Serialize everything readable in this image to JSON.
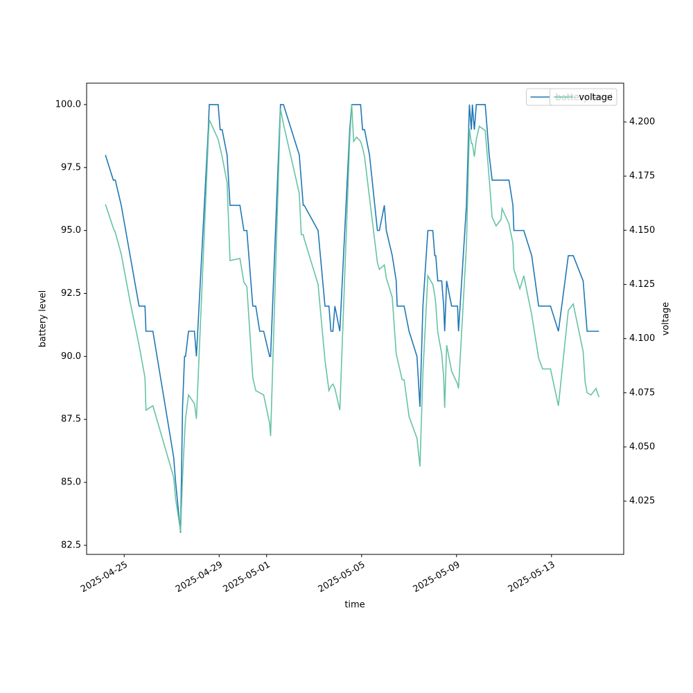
{
  "chart_data": {
    "type": "line",
    "xlabel": "time",
    "ylabel": "battery level",
    "y2label": "voltage",
    "xlim": [
      "2025-04-23T10:00",
      "2025-05-16T01:00"
    ],
    "xticks": [
      "2025-04-25",
      "2025-04-29",
      "2025-05-01",
      "2025-05-05",
      "2025-05-09",
      "2025-05-13"
    ],
    "ylim": [
      82.14,
      100.85
    ],
    "yticks": [
      82.5,
      {
        "value": 85,
        "label": "85.0"
      },
      87.5,
      {
        "value": 90,
        "label": "90.0"
      },
      92.5,
      {
        "value": 95,
        "label": "95.0"
      },
      97.5,
      {
        "value": 100,
        "label": "100.0"
      }
    ],
    "y2lim": [
      4.0004,
      4.2179
    ],
    "y2ticks": [
      4.025,
      {
        "value": 4.05,
        "label": "4.050"
      },
      4.075,
      {
        "value": 4.1,
        "label": "4.100"
      },
      4.125,
      {
        "value": 4.15,
        "label": "4.150"
      },
      4.175,
      {
        "value": 4.2,
        "label": "4.200"
      }
    ],
    "legend": "upper right",
    "x": [
      "2025-04-24T05:00",
      "2025-04-24T13:00",
      "2025-04-24T15:00",
      "2025-04-24T21:00",
      "2025-04-25T06:00",
      "2025-04-25T15:00",
      "2025-04-25T21:00",
      "2025-04-25T22:00",
      "2025-04-26T05:00",
      "2025-04-27T02:00",
      "2025-04-27T04:00",
      "2025-04-27T09:00",
      "2025-04-27T11:00",
      "2025-04-27T13:00",
      "2025-04-27T14:00",
      "2025-04-27T17:00",
      "2025-04-27T23:00",
      "2025-04-28T01:00",
      "2025-04-28T13:00",
      "2025-04-28T14:00",
      "2025-04-28T23:00",
      "2025-04-29T01:00",
      "2025-04-29T03:00",
      "2025-04-29T08:00",
      "2025-04-29T11:00",
      "2025-04-29T21:00",
      "2025-04-30T01:00",
      "2025-04-30T04:00",
      "2025-04-30T10:00",
      "2025-04-30T13:00",
      "2025-04-30T17:00",
      "2025-04-30T21:00",
      "2025-05-01T03:00",
      "2025-05-01T04:00",
      "2025-05-01T14:00",
      "2025-05-01T17:00",
      "2025-05-02T09:00",
      "2025-05-02T11:00",
      "2025-05-02T13:00",
      "2025-05-02T14:00",
      "2025-05-03T04:00",
      "2025-05-03T11:00",
      "2025-05-03T15:00",
      "2025-05-03T17:00",
      "2025-05-03T19:00",
      "2025-05-03T21:00",
      "2025-05-04T02:00",
      "2025-05-04T12:00",
      "2025-05-04T14:00",
      "2025-05-04T16:00",
      "2025-05-04T19:00",
      "2025-05-04T23:00",
      "2025-05-05T01:00",
      "2025-05-05T03:00",
      "2025-05-05T08:00",
      "2025-05-05T16:00",
      "2025-05-05T18:00",
      "2025-05-05T23:00",
      "2025-05-06T01:00",
      "2025-05-06T07:00",
      "2025-05-06T11:00",
      "2025-05-06T12:00",
      "2025-05-06T17:00",
      "2025-05-06T19:00",
      "2025-05-07T00:00",
      "2025-05-07T08:00",
      "2025-05-07T11:00",
      "2025-05-07T14:00",
      "2025-05-07T19:00",
      "2025-05-08T00:00",
      "2025-05-08T02:00",
      "2025-05-08T03:00",
      "2025-05-08T05:00",
      "2025-05-08T09:00",
      "2025-05-08T11:00",
      "2025-05-08T12:00",
      "2025-05-08T14:00",
      "2025-05-08T19:00",
      "2025-05-09T01:00",
      "2025-05-09T02:00",
      "2025-05-09T10:00",
      "2025-05-09T13:00",
      "2025-05-09T15:00",
      "2025-05-09T16:00",
      "2025-05-09T18:00",
      "2025-05-09T20:00",
      "2025-05-09T23:00",
      "2025-05-10T05:00",
      "2025-05-10T09:00",
      "2025-05-10T12:00",
      "2025-05-10T16:00",
      "2025-05-10T21:00",
      "2025-05-10T22:00",
      "2025-05-11T05:00",
      "2025-05-11T09:00",
      "2025-05-11T10:00",
      "2025-05-11T16:00",
      "2025-05-11T20:00",
      "2025-05-12T04:00",
      "2025-05-12T11:00",
      "2025-05-12T15:00",
      "2025-05-12T23:00",
      "2025-05-13T07:00",
      "2025-05-13T17:00",
      "2025-05-13T22:00",
      "2025-05-14T08:00",
      "2025-05-14T10:00",
      "2025-05-14T12:00",
      "2025-05-14T16:00",
      "2025-05-14T21:00",
      "2025-05-15T00:00"
    ],
    "series": [
      {
        "name": "battery level",
        "color": "#1f77b4",
        "values": [
          98,
          97,
          97,
          96,
          94,
          92,
          92,
          91,
          91,
          86,
          85,
          83,
          88,
          90,
          90,
          91,
          91,
          90,
          99,
          100,
          100,
          99,
          99,
          98,
          96,
          96,
          95,
          95,
          92,
          92,
          91,
          91,
          90,
          90,
          100,
          100,
          98,
          97,
          96,
          96,
          95,
          92,
          92,
          91,
          91,
          92,
          91,
          99,
          100,
          100,
          100,
          100,
          99,
          99,
          98,
          95,
          95,
          96,
          95,
          94,
          93,
          92,
          92,
          92,
          91,
          90,
          88,
          92,
          95,
          95,
          94,
          94,
          93,
          93,
          92,
          91,
          93,
          92,
          92,
          91,
          96,
          100,
          99,
          100,
          99,
          100,
          100,
          100,
          98,
          97,
          97,
          97,
          97,
          97,
          96,
          95,
          95,
          95,
          94,
          92,
          92,
          92,
          91,
          94,
          94,
          93,
          92,
          91,
          91,
          91,
          91
        ]
      },
      {
        "name": "voltage",
        "color": "#66c2a5",
        "axis": "y2",
        "values": [
          4.162,
          4.151,
          4.149,
          4.139,
          4.117,
          4.097,
          4.082,
          4.067,
          4.069,
          4.036,
          4.026,
          4.011,
          4.036,
          4.055,
          4.063,
          4.074,
          4.07,
          4.063,
          4.192,
          4.201,
          4.192,
          4.188,
          4.184,
          4.172,
          4.136,
          4.137,
          4.126,
          4.124,
          4.082,
          4.076,
          4.075,
          4.074,
          4.061,
          4.055,
          4.206,
          4.199,
          4.167,
          4.148,
          4.148,
          4.146,
          4.125,
          4.09,
          4.076,
          4.078,
          4.079,
          4.077,
          4.067,
          4.192,
          4.208,
          4.191,
          4.193,
          4.191,
          4.188,
          4.184,
          4.165,
          4.135,
          4.132,
          4.134,
          4.128,
          4.119,
          4.093,
          4.091,
          4.081,
          4.081,
          4.064,
          4.054,
          4.041,
          4.084,
          4.129,
          4.125,
          4.12,
          4.116,
          4.103,
          4.093,
          4.082,
          4.068,
          4.097,
          4.085,
          4.079,
          4.077,
          4.143,
          4.197,
          4.19,
          4.19,
          4.184,
          4.192,
          4.198,
          4.196,
          4.174,
          4.156,
          4.152,
          4.155,
          4.16,
          4.153,
          4.144,
          4.132,
          4.123,
          4.129,
          4.111,
          4.091,
          4.086,
          4.086,
          4.069,
          4.113,
          4.116,
          4.094,
          4.08,
          4.075,
          4.074,
          4.077,
          4.073
        ]
      }
    ]
  }
}
